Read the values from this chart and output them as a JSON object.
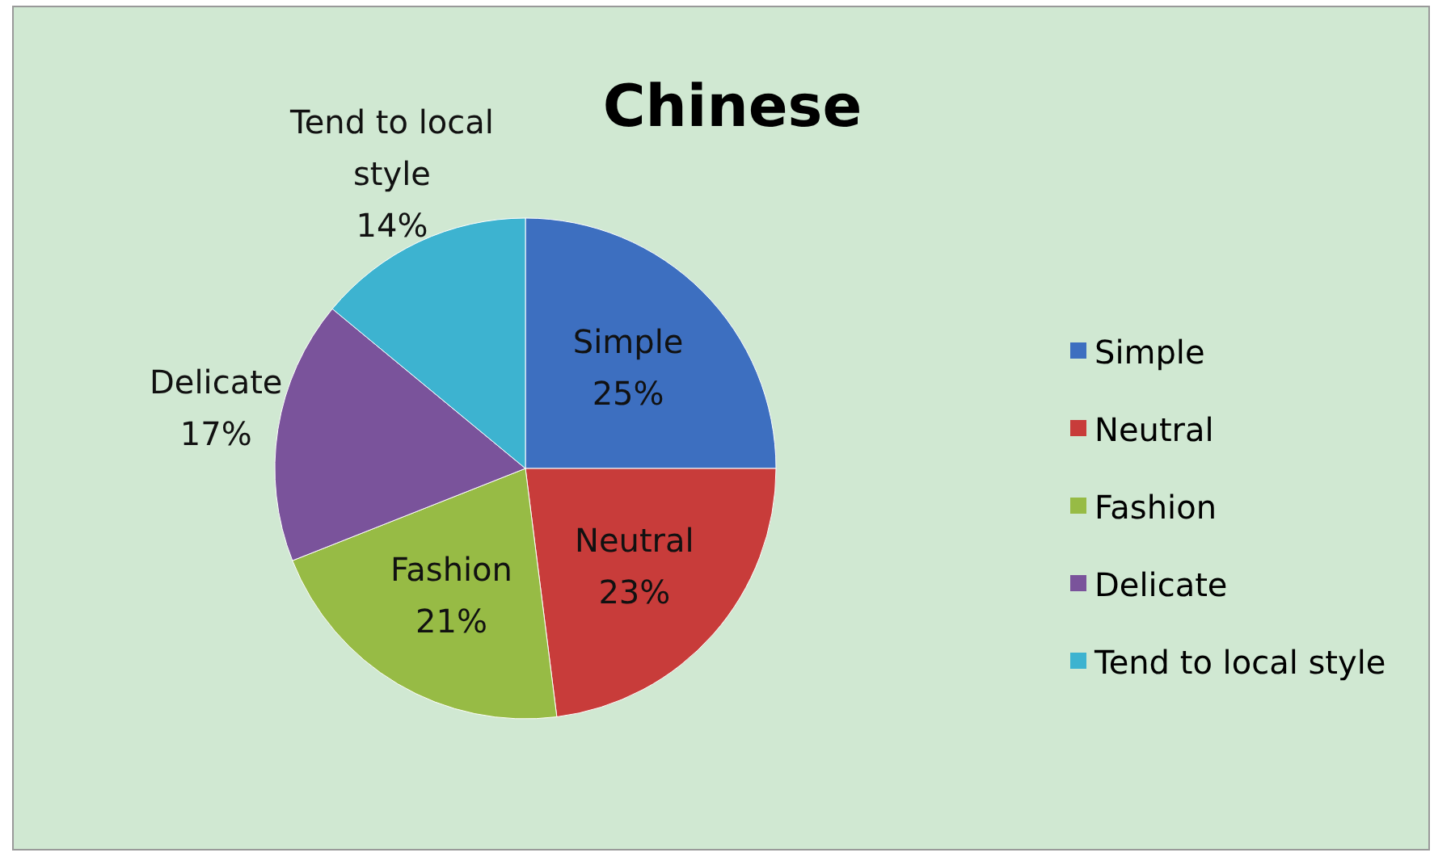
{
  "chart_data": {
    "type": "pie",
    "title": "Chinese",
    "categories": [
      "Simple",
      "Neutral",
      "Fashion",
      "Delicate",
      "Tend to local style"
    ],
    "values": [
      25,
      23,
      21,
      17,
      14
    ],
    "value_labels": [
      "25%",
      "23%",
      "21%",
      "17%",
      "14%"
    ],
    "colors": [
      "#3d6fc0",
      "#c83c3a",
      "#97bb45",
      "#7a539b",
      "#3db3d0"
    ],
    "legend": "right"
  }
}
